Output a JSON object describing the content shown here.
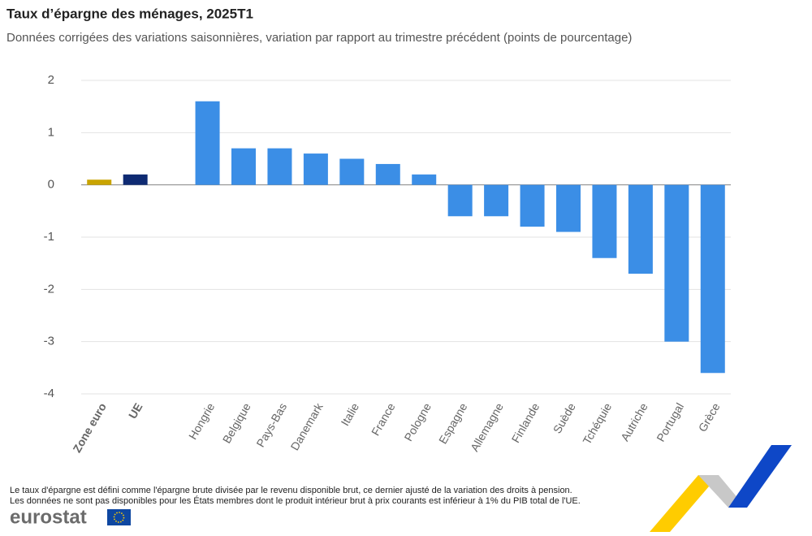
{
  "chart_data": {
    "type": "bar",
    "title": "Taux d’épargne des ménages, 2025T1",
    "subtitle": "Données corrigées des variations saisonnières, variation par rapport au trimestre précédent (points de pourcentage)",
    "categories": [
      "Zone euro",
      "UE",
      null,
      "Hongrie",
      "Belgique",
      "Pays-Bas",
      "Danemark",
      "Italie",
      "France",
      "Pologne",
      "Espagne",
      "Allemagne",
      "Finlande",
      "Suède",
      "Tchéquie",
      "Autriche",
      "Portugal",
      "Grèce"
    ],
    "values": [
      0.1,
      0.2,
      null,
      1.6,
      0.7,
      0.7,
      0.6,
      0.5,
      0.4,
      0.2,
      -0.6,
      -0.6,
      -0.8,
      -0.9,
      -1.4,
      -1.7,
      -3.0,
      -3.6
    ],
    "color": "#3b8ee6",
    "colors": [
      "#c9a400",
      "#0e2a72",
      null,
      "#3b8ee6",
      "#3b8ee6",
      "#3b8ee6",
      "#3b8ee6",
      "#3b8ee6",
      "#3b8ee6",
      "#3b8ee6",
      "#3b8ee6",
      "#3b8ee6",
      "#3b8ee6",
      "#3b8ee6",
      "#3b8ee6",
      "#3b8ee6",
      "#3b8ee6",
      "#3b8ee6"
    ],
    "ylim": [
      -4,
      2
    ],
    "yticks": [
      -4,
      -3,
      -2,
      -1,
      0,
      1,
      2
    ],
    "grid": true,
    "notes": [
      "Le taux d'épargne est défini comme l'épargne brute divisée par le revenu disponible brut, ce dernier ajusté de la variation des droits à pension.",
      "Les données ne sont pas disponibles pour les États membres dont le produit intérieur brut à prix courants est inférieur à 1% du PIB total de l'UE."
    ],
    "source": "eurostat"
  }
}
